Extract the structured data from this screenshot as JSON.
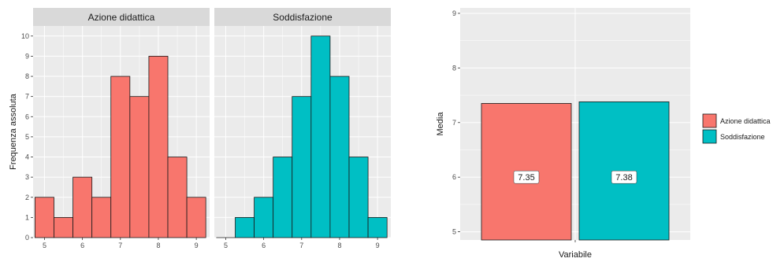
{
  "colors": {
    "azione": "#F8766D",
    "soddisfazione": "#00BFC4",
    "panel_bg": "#EBEBEB",
    "strip_bg": "#D9D9D9",
    "grid": "#FFFFFF",
    "bar_stroke": "#1a1a1a"
  },
  "chart_data": [
    {
      "type": "bar",
      "subtype": "histogram",
      "facets": [
        "Azione didattica",
        "Soddisfazione"
      ],
      "ylabel": "Frequenza assoluta",
      "xlabel": "",
      "ylim": [
        0,
        10.5
      ],
      "y_ticks": [
        0,
        1,
        2,
        3,
        4,
        5,
        6,
        7,
        8,
        9,
        10
      ],
      "x_ticks": [
        5,
        6,
        7,
        8,
        9
      ],
      "xlim": [
        4.7,
        9.35
      ],
      "panels": [
        {
          "facet": "Azione didattica",
          "color_key": "azione",
          "bins": [
            {
              "start": 4.75,
              "end": 5.25,
              "count": 2
            },
            {
              "start": 5.25,
              "end": 5.75,
              "count": 1
            },
            {
              "start": 5.75,
              "end": 6.25,
              "count": 3
            },
            {
              "start": 6.25,
              "end": 6.75,
              "count": 2
            },
            {
              "start": 6.75,
              "end": 7.25,
              "count": 8
            },
            {
              "start": 7.25,
              "end": 7.75,
              "count": 7
            },
            {
              "start": 7.75,
              "end": 8.25,
              "count": 9
            },
            {
              "start": 8.25,
              "end": 8.75,
              "count": 4
            },
            {
              "start": 8.75,
              "end": 9.25,
              "count": 2
            }
          ]
        },
        {
          "facet": "Soddisfazione",
          "color_key": "soddisfazione",
          "bins": [
            {
              "start": 4.75,
              "end": 5.25,
              "count": 0
            },
            {
              "start": 5.25,
              "end": 5.75,
              "count": 1
            },
            {
              "start": 5.75,
              "end": 6.25,
              "count": 2
            },
            {
              "start": 6.25,
              "end": 6.75,
              "count": 4
            },
            {
              "start": 6.75,
              "end": 7.25,
              "count": 7
            },
            {
              "start": 7.25,
              "end": 7.75,
              "count": 10
            },
            {
              "start": 7.75,
              "end": 8.25,
              "count": 8
            },
            {
              "start": 8.25,
              "end": 8.75,
              "count": 4
            },
            {
              "start": 8.75,
              "end": 9.25,
              "count": 1
            }
          ]
        }
      ],
      "grid": true
    },
    {
      "type": "bar",
      "categories": [
        "Azione didattica",
        "Soddisfazione"
      ],
      "values": [
        7.35,
        7.38
      ],
      "labels": [
        "7.35",
        "7.38"
      ],
      "xlabel": "Variabile",
      "ylabel": "Media",
      "ylim": [
        4.85,
        9.1
      ],
      "y_ticks": [
        5,
        6,
        7,
        8,
        9
      ],
      "legend": {
        "position": "right",
        "entries": [
          "Azione didattica",
          "Soddisfazione"
        ]
      },
      "grid": true
    }
  ]
}
